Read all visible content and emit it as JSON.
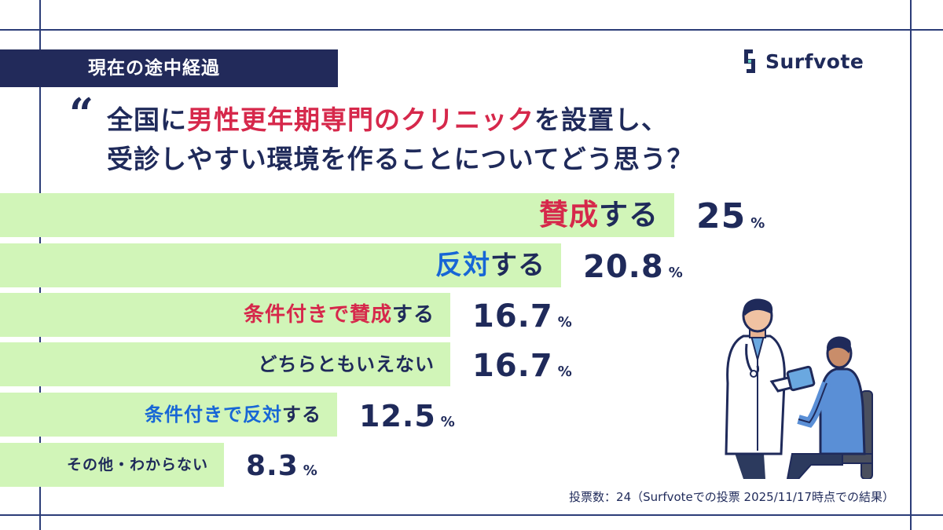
{
  "header": {
    "status_label": "現在の途中経過",
    "logo_text": "Surfvote"
  },
  "question": {
    "quote_mark": "“",
    "line1_pre": "全国に",
    "line1_highlight": "男性更年期専門のクリニック",
    "line1_post": "を設置し、",
    "line2": "受診しやすい環境を作ることについてどう思う？"
  },
  "chart_data": {
    "type": "bar",
    "orientation": "horizontal",
    "categories": [
      "賛成する",
      "反対する",
      "条件付きで賛成する",
      "どちらともいえない",
      "条件付きで反対する",
      "その他・わからない"
    ],
    "values": [
      25,
      20.8,
      16.7,
      16.7,
      12.5,
      8.3
    ],
    "unit": "%",
    "bar_color": "#d1f5b8",
    "label_parts": [
      [
        {
          "text": "賛成",
          "color": "#d6284b"
        },
        {
          "text": "する",
          "color": "#1f2a5a"
        }
      ],
      [
        {
          "text": "反対",
          "color": "#1766d6"
        },
        {
          "text": "する",
          "color": "#1f2a5a"
        }
      ],
      [
        {
          "text": "条件付きで賛成",
          "color": "#d6284b"
        },
        {
          "text": "する",
          "color": "#1f2a5a"
        }
      ],
      [
        {
          "text": "どちらともいえない",
          "color": "#1f2a5a"
        }
      ],
      [
        {
          "text": "条件付きで反対",
          "color": "#1766d6"
        },
        {
          "text": "する",
          "color": "#1f2a5a"
        }
      ],
      [
        {
          "text": "その他・わからない",
          "color": "#1f2a5a"
        }
      ]
    ]
  },
  "footnote": "投票数：24（Surfvoteでの投票 2025/11/17時点での結果）",
  "colors": {
    "navy": "#1f2a5a",
    "pink": "#d6284b",
    "blue": "#1766d6",
    "bar": "#d1f5b8"
  }
}
